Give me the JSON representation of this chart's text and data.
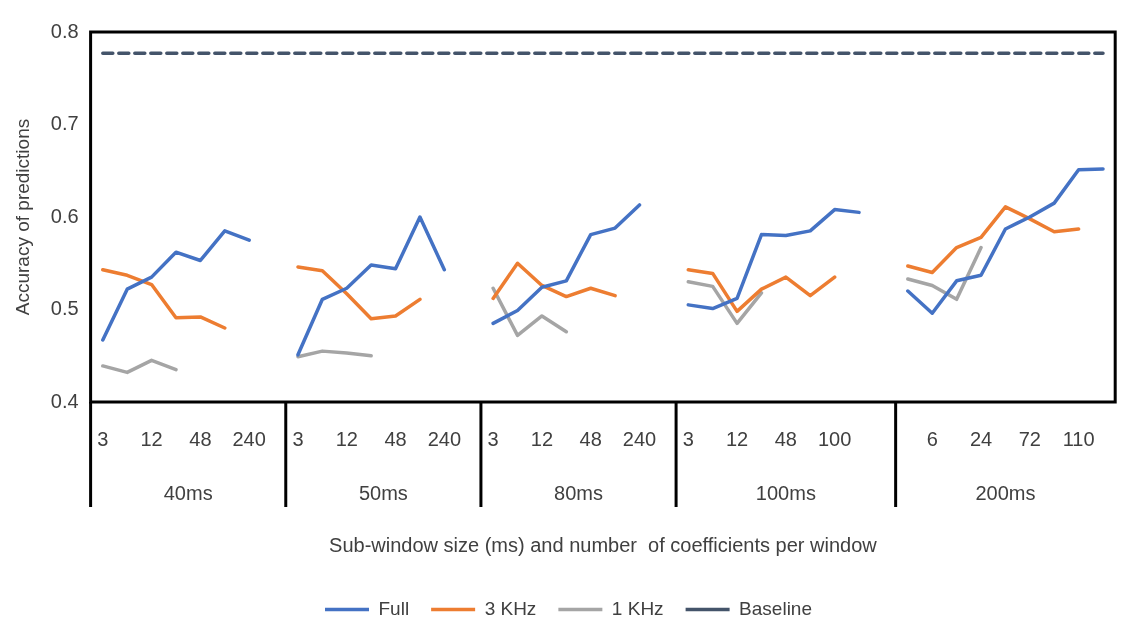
{
  "chart_data": {
    "type": "line",
    "xlabel": "Sub-window size (ms) and number  of coefficients per window",
    "ylabel": "Accuracy of predictions",
    "categories": [
      "3",
      null,
      "12",
      null,
      "48",
      null,
      "240",
      null,
      "3",
      null,
      "12",
      null,
      "48",
      null,
      "240",
      null,
      "3",
      null,
      "12",
      null,
      "48",
      null,
      "240",
      null,
      "3",
      null,
      "12",
      null,
      "48",
      null,
      "100",
      null,
      null,
      null,
      "6",
      null,
      "24",
      null,
      "72",
      null,
      "110",
      null
    ],
    "series": [
      {
        "name": "Full",
        "color": "#4472c4",
        "values": [
          0.467,
          0.522,
          0.535,
          0.562,
          0.553,
          0.585,
          0.575,
          null,
          0.451,
          0.511,
          0.523,
          0.548,
          0.544,
          0.6,
          0.543,
          null,
          0.485,
          0.499,
          0.524,
          0.531,
          0.581,
          0.588,
          0.613,
          null,
          0.505,
          0.501,
          0.512,
          0.581,
          0.58,
          0.585,
          0.608,
          0.605,
          null,
          0.52,
          0.496,
          0.531,
          0.537,
          0.587,
          0.6,
          0.615,
          0.651,
          0.652
        ]
      },
      {
        "name": "3 KHz",
        "color": "#ed7d31",
        "values": [
          0.543,
          0.537,
          0.527,
          0.491,
          0.492,
          0.48,
          null,
          null,
          0.546,
          0.542,
          0.517,
          0.49,
          0.493,
          0.511,
          null,
          null,
          0.512,
          0.55,
          0.526,
          0.514,
          0.523,
          0.515,
          null,
          null,
          0.543,
          0.539,
          0.498,
          0.522,
          0.535,
          0.515,
          0.535,
          null,
          null,
          0.547,
          0.54,
          0.567,
          0.578,
          0.611,
          0.598,
          0.584,
          0.587,
          null
        ]
      },
      {
        "name": "1 KHz",
        "color": "#a5a5a5",
        "values": [
          0.439,
          0.432,
          0.445,
          0.435,
          null,
          null,
          null,
          null,
          0.449,
          0.455,
          0.453,
          0.45,
          null,
          null,
          null,
          null,
          0.523,
          0.472,
          0.493,
          0.476,
          null,
          null,
          null,
          null,
          0.53,
          0.525,
          0.485,
          0.518,
          null,
          null,
          null,
          null,
          null,
          0.533,
          0.526,
          0.511,
          0.567,
          null,
          null,
          null,
          null,
          null
        ]
      },
      {
        "name": "Baseline",
        "color": "#44546a",
        "line_style": "dashed",
        "values": [
          0.777,
          0.777,
          0.777,
          0.777,
          0.777,
          0.777,
          0.777,
          0.777,
          0.777,
          0.777,
          0.777,
          0.777,
          0.777,
          0.777,
          0.777,
          0.777,
          0.777,
          0.777,
          0.777,
          0.777,
          0.777,
          0.777,
          0.777,
          0.777,
          0.777,
          0.777,
          0.777,
          0.777,
          0.777,
          0.777,
          0.777,
          0.777,
          0.777,
          0.777,
          0.777,
          0.777,
          0.777,
          0.777,
          0.777,
          0.777,
          0.777,
          0.777
        ]
      }
    ],
    "annotations": [
      "40ms",
      "50ms",
      "80ms",
      "100ms",
      "200ms"
    ],
    "ylim": [
      0.4,
      0.8
    ],
    "yticks": [
      0.4,
      0.5,
      0.6,
      0.7,
      0.8
    ],
    "grid": false,
    "legend": "bottom",
    "marker": "none",
    "line_style": "solid"
  }
}
